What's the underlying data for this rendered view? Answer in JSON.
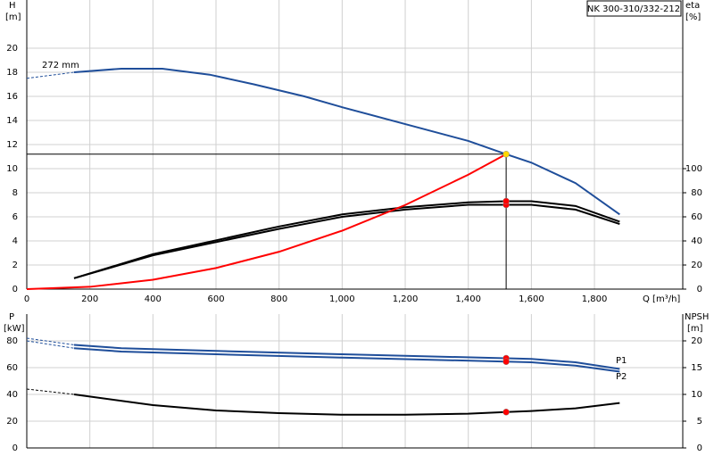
{
  "chart_data": [
    {
      "type": "line",
      "title": "NK 300-310/332-212",
      "ylabel": "H",
      "yunit": "[m]",
      "y2label": "eta",
      "y2unit": "[%]",
      "xlabel": "Q [m³/h]",
      "xlim": [
        0,
        2080
      ],
      "ylim": [
        0,
        24
      ],
      "y2lim": [
        0,
        240
      ],
      "xticks": [
        0,
        200,
        400,
        600,
        800,
        {
          "value": 1000,
          "label": "1,000"
        },
        {
          "value": 1200,
          "label": "1,200"
        },
        {
          "value": 1400,
          "label": "1,400"
        },
        {
          "value": 1600,
          "label": "1,600"
        },
        {
          "value": 1800,
          "label": "1,800"
        }
      ],
      "yticks": [
        0,
        2,
        4,
        6,
        8,
        10,
        12,
        14,
        16,
        18,
        20
      ],
      "y2ticks": [
        0,
        20,
        40,
        60,
        80,
        100
      ],
      "grid": true,
      "series": [
        {
          "name": "272 mm",
          "color": "#1f4e9a",
          "x": [
            150,
            300,
            430,
            580,
            720,
            880,
            1000,
            1200,
            1400,
            1520,
            1600,
            1740,
            1880
          ],
          "values": [
            18.0,
            18.3,
            18.3,
            17.8,
            17.0,
            16.0,
            15.1,
            13.7,
            12.3,
            11.2,
            10.5,
            8.8,
            6.2
          ]
        },
        {
          "color": "#1f4e9a",
          "dashed": true,
          "x": [
            0,
            150
          ],
          "values": [
            17.5,
            18.0
          ]
        },
        {
          "color": "#000000",
          "axis": "y2",
          "x": [
            150,
            400,
            800,
            1000,
            1200,
            1400,
            1520,
            1600,
            1740,
            1880
          ],
          "values": [
            9,
            28,
            50,
            60,
            66,
            70,
            70,
            70,
            66,
            54
          ]
        },
        {
          "color": "#000000",
          "axis": "y2",
          "x": [
            150,
            400,
            800,
            1000,
            1200,
            1400,
            1520,
            1600,
            1740,
            1880
          ],
          "values": [
            9,
            29,
            52,
            62,
            68,
            72,
            73,
            73,
            69,
            56
          ]
        },
        {
          "color": "#ff0000",
          "x": [
            0,
            200,
            400,
            600,
            800,
            1000,
            1200,
            1400,
            1520
          ],
          "values": [
            0,
            0.19,
            0.78,
            1.75,
            3.1,
            4.85,
            6.98,
            9.5,
            11.2
          ]
        }
      ],
      "markers": [
        {
          "x": 1520,
          "y": 11.2,
          "color": "#ffd700"
        },
        {
          "x": 1520,
          "y": 70,
          "axis": "y2",
          "color": "#ff0000"
        },
        {
          "x": 1520,
          "y": 73,
          "axis": "y2",
          "color": "#ff0000"
        }
      ]
    },
    {
      "type": "line",
      "ylabel": "P",
      "yunit": "[kW]",
      "y2label": "NPSH",
      "y2unit": "[m]",
      "ylim": [
        0,
        100
      ],
      "y2lim": [
        0,
        25
      ],
      "yticks": [
        0,
        20,
        40,
        60,
        80
      ],
      "y2ticks": [
        0,
        5,
        10,
        15,
        20
      ],
      "grid": true,
      "series": [
        {
          "name": "P1",
          "color": "#1f4e9a",
          "x": [
            150,
            300,
            600,
            1000,
            1520,
            1600,
            1740,
            1880
          ],
          "values": [
            77,
            74.5,
            72.5,
            70,
            67,
            66.5,
            64,
            59
          ]
        },
        {
          "name": "P2",
          "color": "#1f4e9a",
          "x": [
            150,
            300,
            600,
            1000,
            1520,
            1600,
            1740,
            1880
          ],
          "values": [
            74.5,
            72,
            70,
            67.5,
            64.5,
            64,
            61.5,
            57
          ]
        },
        {
          "color": "#1f4e9a",
          "dashed": true,
          "x": [
            0,
            150
          ],
          "values": [
            82,
            77
          ]
        },
        {
          "color": "#1f4e9a",
          "dashed": true,
          "x": [
            0,
            150
          ],
          "values": [
            80,
            74.5
          ]
        },
        {
          "color": "#000000",
          "axis": "y2",
          "x": [
            150,
            400,
            600,
            800,
            1000,
            1200,
            1400,
            1520,
            1600,
            1740,
            1880
          ],
          "values": [
            10,
            8,
            7,
            6.5,
            6.2,
            6.2,
            6.4,
            6.7,
            6.9,
            7.4,
            8.4
          ]
        },
        {
          "color": "#000000",
          "axis": "y2",
          "dashed": true,
          "x": [
            0,
            150
          ],
          "values": [
            11,
            10
          ]
        }
      ],
      "markers": [
        {
          "x": 1520,
          "y": 67,
          "color": "#ff0000"
        },
        {
          "x": 1520,
          "y": 64.5,
          "color": "#ff0000"
        },
        {
          "x": 1520,
          "y": 6.7,
          "axis": "y2",
          "color": "#ff0000"
        }
      ]
    }
  ]
}
